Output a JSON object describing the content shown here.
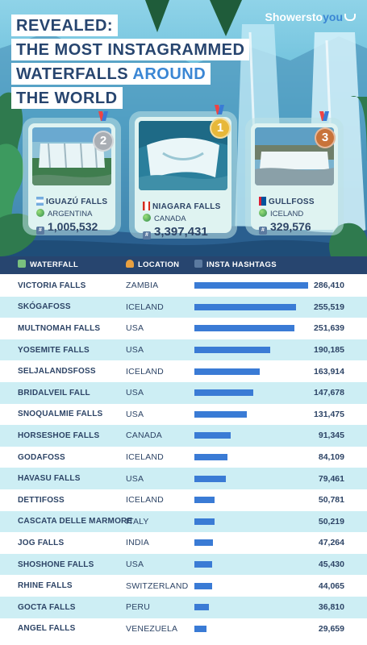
{
  "header": {
    "title_lines": [
      {
        "pre": "REVEALED:",
        "accent": "",
        "post": ""
      },
      {
        "pre": "THE MOST INSTAGRAMMED",
        "accent": "",
        "post": ""
      },
      {
        "pre": "WATERFALLS ",
        "accent": "AROUND",
        "post": ""
      },
      {
        "pre": "THE WORLD",
        "accent": "",
        "post": ""
      }
    ],
    "brand": {
      "main": "Showersto",
      "accent": "you"
    }
  },
  "podium": [
    {
      "rank": "2",
      "name": "IGUAZÚ FALLS",
      "country": "ARGENTINA",
      "count": "1,005,532",
      "medal_color": "#a9aeb4"
    },
    {
      "rank": "1",
      "name": "NIAGARA FALLS",
      "country": "CANADA",
      "count": "3,397,431",
      "medal_color": "#e7b83a"
    },
    {
      "rank": "3",
      "name": "GULLFOSS",
      "country": "ICELAND",
      "count": "329,576",
      "medal_color": "#c8733a"
    }
  ],
  "table": {
    "headers": {
      "waterfall": "WATERFALL",
      "location": "LOCATION",
      "hashtags": "INSTA HASHTAGS"
    }
  },
  "chart_data": {
    "type": "bar",
    "orientation": "horizontal",
    "title": "",
    "categories": [
      "VICTORIA FALLS",
      "SKÓGAFOSS",
      "MULTNOMAH FALLS",
      "YOSEMITE FALLS",
      "SELJALANDSFOSS",
      "BRIDALVEIL FALL",
      "SNOQUALMIE FALLS",
      "HORSESHOE FALLS",
      "GODAFOSS",
      "HAVASU FALLS",
      "DETTIFOSS",
      "CASCATA DELLE MARMORE",
      "JOG FALLS",
      "SHOSHONE FALLS",
      "RHINE FALLS",
      "GOCTA FALLS",
      "ANGEL FALLS"
    ],
    "locations": [
      "ZAMBIA",
      "ICELAND",
      "USA",
      "USA",
      "ICELAND",
      "USA",
      "USA",
      "CANADA",
      "ICELAND",
      "USA",
      "ICELAND",
      "ITALY",
      "INDIA",
      "USA",
      "SWITZERLAND",
      "PERU",
      "VENEZUELA"
    ],
    "values": [
      286410,
      255519,
      251639,
      190185,
      163914,
      147678,
      131475,
      91345,
      84109,
      79461,
      50781,
      50219,
      47264,
      45430,
      44065,
      36810,
      29659
    ],
    "value_labels": [
      "286,410",
      "255,519",
      "251,639",
      "190,185",
      "163,914",
      "147,678",
      "131,475",
      "91,345",
      "84,109",
      "79,461",
      "50,781",
      "50,219",
      "47,264",
      "45,430",
      "44,065",
      "36,810",
      "29,659"
    ],
    "bar_color": "#3a7bd5",
    "row_alt_color": "#cdeef4",
    "header_color": "#27456f",
    "grid": false
  }
}
